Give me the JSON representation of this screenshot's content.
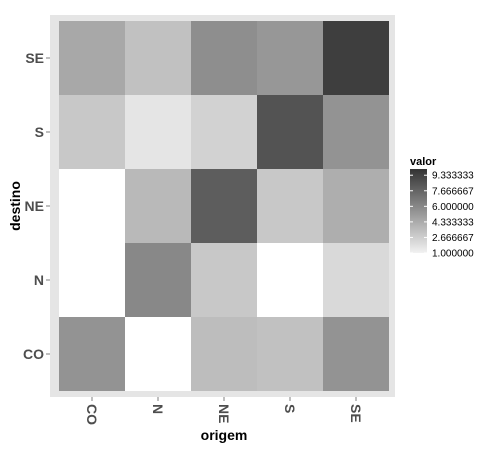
{
  "chart_data": {
    "type": "heatmap",
    "xlabel": "origem",
    "ylabel": "destino",
    "x_categories": [
      "CO",
      "N",
      "NE",
      "S",
      "SE"
    ],
    "y_categories": [
      "CO",
      "N",
      "NE",
      "S",
      "SE"
    ],
    "values": [
      [
        5.5,
        1.0,
        3.5,
        3.3,
        5.5
      ],
      [
        1.0,
        6.0,
        3.0,
        1.0,
        2.2
      ],
      [
        1.0,
        3.7,
        8.0,
        3.0,
        4.2
      ],
      [
        3.0,
        1.6,
        2.5,
        8.5,
        5.5
      ],
      [
        4.5,
        3.3,
        5.7,
        5.3,
        9.5
      ]
    ],
    "legend": {
      "title": "valor",
      "min": 1.0,
      "max": 10.0,
      "breaks": [
        9.333333,
        7.666667,
        6.0,
        4.333333,
        2.666667,
        1.0
      ],
      "break_labels": [
        "9.333333",
        "7.666667",
        "6.000000",
        "4.333333",
        "2.666667",
        "1.000000"
      ],
      "low_color": "#f2f2f2",
      "high_color": "#333333"
    },
    "panel_background": "#e5e5e5",
    "missing_color": "#ffffff"
  }
}
